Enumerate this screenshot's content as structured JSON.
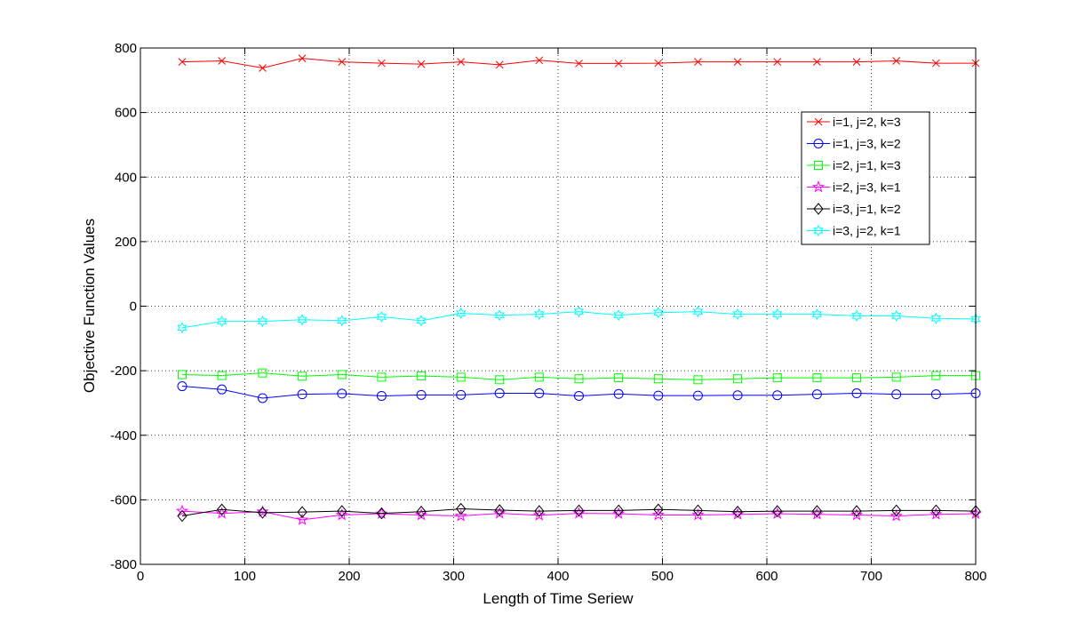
{
  "chart_data": {
    "type": "line",
    "title": "",
    "xlabel": "Length of Time Seriew",
    "ylabel": "Objective Function Values",
    "xlim": [
      0,
      800
    ],
    "ylim": [
      -800,
      800
    ],
    "xticks": [
      0,
      100,
      200,
      300,
      400,
      500,
      600,
      700,
      800
    ],
    "yticks": [
      -800,
      -600,
      -400,
      -200,
      0,
      200,
      400,
      600,
      800
    ],
    "grid": true,
    "legend_position": "top-right",
    "x": [
      40,
      78,
      117,
      155,
      193,
      231,
      269,
      307,
      344,
      382,
      420,
      458,
      496,
      534,
      572,
      610,
      648,
      686,
      724,
      762,
      800
    ],
    "series": [
      {
        "name": "i=1, j=2, k=3",
        "color": "#ff0000",
        "marker": "x",
        "values": [
          757,
          760,
          738,
          768,
          757,
          753,
          750,
          757,
          748,
          762,
          752,
          752,
          753,
          757,
          757,
          757,
          757,
          757,
          760,
          753,
          753
        ]
      },
      {
        "name": "i=1, j=3, k=2",
        "color": "#0000ff",
        "marker": "circle",
        "values": [
          -248,
          -258,
          -285,
          -273,
          -271,
          -278,
          -275,
          -275,
          -270,
          -270,
          -278,
          -272,
          -277,
          -277,
          -276,
          -276,
          -273,
          -270,
          -273,
          -273,
          -270
        ]
      },
      {
        "name": "i=2, j=1, k=3",
        "color": "#00ff00",
        "marker": "square",
        "values": [
          -212,
          -215,
          -207,
          -217,
          -212,
          -220,
          -216,
          -220,
          -228,
          -220,
          -225,
          -222,
          -225,
          -228,
          -225,
          -222,
          -222,
          -222,
          -220,
          -215,
          -215
        ]
      },
      {
        "name": "i=2, j=3, k=1",
        "color": "#ff00ff",
        "marker": "star",
        "values": [
          -635,
          -642,
          -637,
          -662,
          -647,
          -643,
          -647,
          -650,
          -642,
          -648,
          -642,
          -643,
          -647,
          -647,
          -645,
          -643,
          -645,
          -647,
          -650,
          -645,
          -643
        ]
      },
      {
        "name": "i=3, j=1, k=2",
        "color": "#000000",
        "marker": "diamond",
        "values": [
          -650,
          -630,
          -640,
          -638,
          -635,
          -642,
          -637,
          -628,
          -632,
          -635,
          -633,
          -633,
          -630,
          -633,
          -637,
          -635,
          -635,
          -635,
          -633,
          -633,
          -635
        ]
      },
      {
        "name": "i=3, j=2, k=1",
        "color": "#00ffff",
        "marker": "hexagram",
        "values": [
          -67,
          -47,
          -47,
          -42,
          -45,
          -33,
          -45,
          -22,
          -28,
          -25,
          -17,
          -28,
          -20,
          -17,
          -25,
          -25,
          -25,
          -30,
          -30,
          -38,
          -40
        ]
      }
    ]
  }
}
